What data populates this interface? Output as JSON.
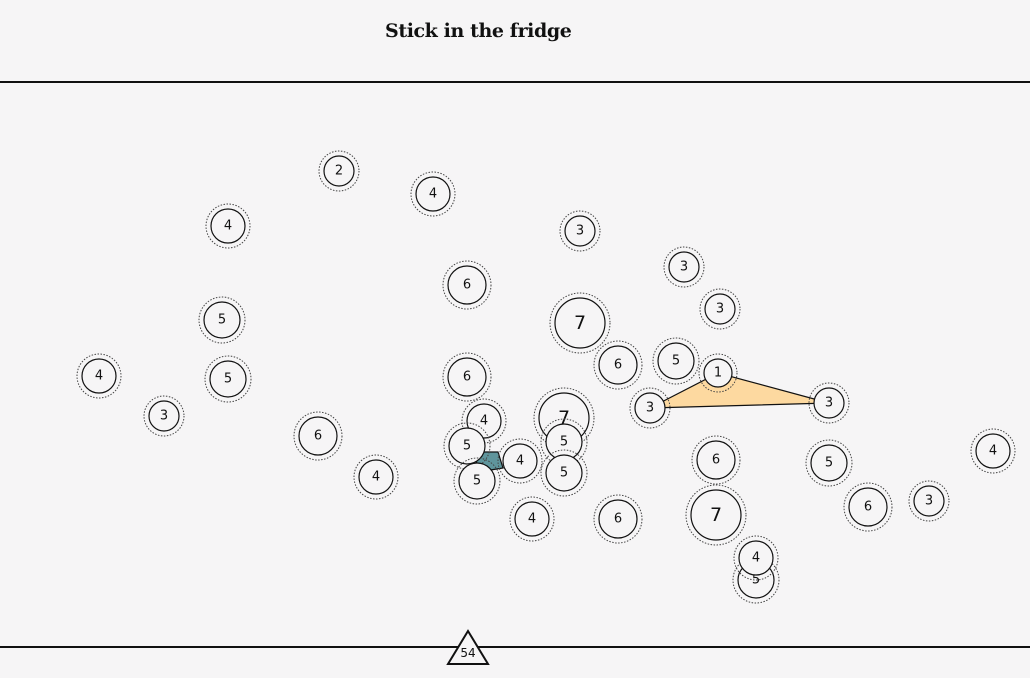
{
  "header": {
    "title": "Stick in the fridge"
  },
  "colors": {
    "background": "#f6f5f6",
    "line": "#111111",
    "highlight_triangle": "#fdd9a0",
    "highlight_quad": "#5f959c"
  },
  "counter": {
    "value": "54",
    "shape": "triangle-icon"
  },
  "nodes": [
    {
      "value": "2"
    },
    {
      "value": "4"
    },
    {
      "value": "4"
    },
    {
      "value": "3"
    },
    {
      "value": "3"
    },
    {
      "value": "6"
    },
    {
      "value": "3"
    },
    {
      "value": "5"
    },
    {
      "value": "7"
    },
    {
      "value": "6"
    },
    {
      "value": "5"
    },
    {
      "value": "1"
    },
    {
      "value": "4"
    },
    {
      "value": "5"
    },
    {
      "value": "6"
    },
    {
      "value": "3"
    },
    {
      "value": "3"
    },
    {
      "value": "3"
    },
    {
      "value": "4"
    },
    {
      "value": "7"
    },
    {
      "value": "5"
    },
    {
      "value": "5"
    },
    {
      "value": "4"
    },
    {
      "value": "5"
    },
    {
      "value": "4"
    },
    {
      "value": "5"
    },
    {
      "value": "6"
    },
    {
      "value": "4"
    },
    {
      "value": "6"
    },
    {
      "value": "5"
    },
    {
      "value": "4"
    },
    {
      "value": "6"
    },
    {
      "value": "7"
    },
    {
      "value": "6"
    },
    {
      "value": "3"
    },
    {
      "value": "5"
    },
    {
      "value": "4"
    }
  ]
}
